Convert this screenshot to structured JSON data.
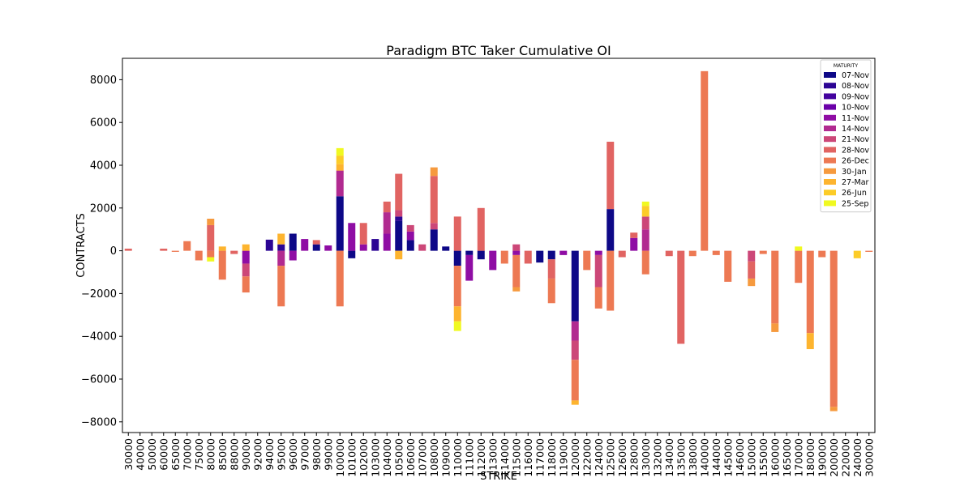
{
  "chart_data": {
    "type": "bar",
    "stacked": true,
    "title": "Paradigm BTC Taker Cumulative OI",
    "xlabel": "STRIKE",
    "ylabel": "CONTRACTS",
    "ylim": [
      -8500,
      9000
    ],
    "yticks": [
      -8000,
      -6000,
      -4000,
      -2000,
      0,
      2000,
      4000,
      6000,
      8000
    ],
    "grid": false,
    "legend": {
      "title": "MATURITY",
      "placement": "top-right"
    },
    "categories": [
      "30000",
      "40000",
      "50000",
      "60000",
      "65000",
      "70000",
      "75000",
      "80000",
      "85000",
      "88000",
      "90000",
      "92000",
      "94000",
      "95000",
      "96000",
      "97000",
      "98000",
      "99000",
      "100000",
      "101000",
      "102000",
      "103000",
      "104000",
      "105000",
      "106000",
      "107000",
      "108000",
      "109000",
      "110000",
      "111000",
      "112000",
      "113000",
      "114000",
      "115000",
      "116000",
      "117000",
      "118000",
      "119000",
      "120000",
      "122000",
      "124000",
      "125000",
      "126000",
      "128000",
      "130000",
      "132000",
      "134000",
      "135000",
      "138000",
      "140000",
      "144000",
      "145000",
      "146000",
      "150000",
      "155000",
      "160000",
      "165000",
      "170000",
      "180000",
      "190000",
      "200000",
      "220000",
      "240000",
      "300000"
    ],
    "series": [
      {
        "name": "07-Nov",
        "color": "#0d0887",
        "values": [
          0,
          0,
          0,
          0,
          0,
          0,
          0,
          0,
          0,
          0,
          0,
          0,
          0,
          0,
          800,
          0,
          300,
          0,
          2550,
          -350,
          0,
          0,
          0,
          1400,
          500,
          0,
          1000,
          200,
          -700,
          -200,
          -400,
          0,
          0,
          0,
          0,
          -550,
          -400,
          0,
          -3300,
          0,
          0,
          1950,
          0,
          0,
          0,
          0,
          0,
          0,
          0,
          0,
          0,
          0,
          0,
          0,
          0,
          0,
          0,
          0,
          0,
          0,
          0,
          0,
          0,
          0
        ]
      },
      {
        "name": "08-Nov",
        "color": "#2c0594",
        "values": [
          0,
          0,
          0,
          0,
          0,
          0,
          0,
          0,
          0,
          0,
          0,
          0,
          520,
          300,
          0,
          0,
          0,
          0,
          0,
          0,
          0,
          550,
          0,
          200,
          0,
          0,
          0,
          0,
          0,
          0,
          0,
          0,
          0,
          0,
          0,
          0,
          0,
          0,
          0,
          0,
          0,
          0,
          0,
          0,
          0,
          0,
          0,
          0,
          0,
          0,
          0,
          0,
          0,
          0,
          0,
          0,
          0,
          0,
          0,
          0,
          0,
          0,
          0,
          0
        ]
      },
      {
        "name": "09-Nov",
        "color": "#43039e",
        "values": [
          0,
          0,
          0,
          0,
          0,
          0,
          0,
          0,
          0,
          0,
          0,
          0,
          0,
          0,
          0,
          0,
          0,
          0,
          0,
          0,
          0,
          0,
          0,
          0,
          0,
          0,
          0,
          0,
          0,
          0,
          0,
          0,
          0,
          0,
          0,
          0,
          0,
          0,
          0,
          0,
          0,
          0,
          0,
          0,
          0,
          0,
          0,
          0,
          0,
          0,
          0,
          0,
          0,
          0,
          0,
          0,
          0,
          0,
          0,
          0,
          0,
          0,
          0,
          0
        ]
      },
      {
        "name": "10-Nov",
        "color": "#6a00a8",
        "values": [
          0,
          0,
          0,
          0,
          0,
          0,
          0,
          0,
          0,
          0,
          0,
          0,
          0,
          0,
          0,
          0,
          0,
          0,
          0,
          0,
          0,
          0,
          0,
          0,
          0,
          0,
          0,
          0,
          0,
          0,
          0,
          0,
          0,
          0,
          0,
          0,
          0,
          0,
          0,
          0,
          0,
          0,
          0,
          0,
          0,
          0,
          0,
          0,
          0,
          0,
          0,
          0,
          0,
          0,
          0,
          0,
          0,
          0,
          0,
          0,
          0,
          0,
          0,
          0
        ]
      },
      {
        "name": "11-Nov",
        "color": "#8f0da4",
        "values": [
          0,
          0,
          0,
          0,
          0,
          0,
          0,
          0,
          0,
          0,
          -600,
          0,
          0,
          0,
          -450,
          550,
          0,
          250,
          0,
          1300,
          300,
          0,
          800,
          0,
          400,
          0,
          0,
          0,
          0,
          -1200,
          0,
          -900,
          0,
          -200,
          0,
          0,
          0,
          -200,
          0,
          0,
          -200,
          0,
          0,
          600,
          0,
          0,
          0,
          0,
          0,
          0,
          0,
          0,
          0,
          0,
          0,
          0,
          0,
          0,
          0,
          0,
          0,
          0,
          0,
          0
        ]
      },
      {
        "name": "14-Nov",
        "color": "#b12a90",
        "values": [
          0,
          0,
          0,
          0,
          0,
          0,
          0,
          0,
          0,
          0,
          0,
          0,
          0,
          -700,
          0,
          0,
          0,
          0,
          1200,
          0,
          0,
          0,
          1000,
          0,
          0,
          0,
          0,
          0,
          0,
          0,
          0,
          0,
          0,
          0,
          0,
          0,
          0,
          0,
          -900,
          0,
          0,
          0,
          0,
          0,
          1000,
          0,
          0,
          0,
          0,
          0,
          0,
          0,
          0,
          0,
          0,
          0,
          0,
          0,
          0,
          0,
          0,
          0,
          0,
          0
        ]
      },
      {
        "name": "21-Nov",
        "color": "#cc4778",
        "values": [
          0,
          0,
          0,
          0,
          0,
          0,
          0,
          0,
          0,
          0,
          -600,
          0,
          0,
          0,
          0,
          0,
          0,
          0,
          0,
          0,
          0,
          0,
          0,
          300,
          300,
          300,
          300,
          0,
          0,
          0,
          0,
          0,
          0,
          300,
          0,
          0,
          0,
          0,
          -900,
          0,
          -1500,
          0,
          0,
          0,
          600,
          0,
          0,
          0,
          0,
          0,
          0,
          0,
          0,
          -500,
          0,
          0,
          0,
          0,
          0,
          0,
          0,
          0,
          0,
          0
        ]
      },
      {
        "name": "28-Nov",
        "color": "#e16462",
        "values": [
          100,
          0,
          0,
          100,
          0,
          0,
          0,
          1200,
          0,
          -150,
          0,
          0,
          0,
          0,
          0,
          0,
          200,
          0,
          0,
          0,
          1000,
          0,
          500,
          1700,
          0,
          0,
          2200,
          0,
          1600,
          0,
          2000,
          0,
          0,
          0,
          -600,
          0,
          -900,
          0,
          0,
          0,
          0,
          3150,
          -300,
          250,
          0,
          0,
          -250,
          -4350,
          0,
          0,
          0,
          0,
          0,
          -800,
          0,
          0,
          0,
          0,
          0,
          0,
          0,
          0,
          0,
          0
        ]
      },
      {
        "name": "26-Dec",
        "color": "#ed7953",
        "values": [
          0,
          0,
          0,
          0,
          -50,
          450,
          -450,
          -300,
          -1350,
          0,
          -750,
          0,
          0,
          -1900,
          0,
          0,
          0,
          0,
          -2600,
          0,
          0,
          0,
          0,
          0,
          0,
          0,
          0,
          0,
          -1900,
          0,
          0,
          0,
          -600,
          -1500,
          0,
          0,
          -1150,
          0,
          -1900,
          -900,
          -1000,
          -2800,
          0,
          0,
          -1100,
          0,
          0,
          0,
          -250,
          8400,
          -200,
          -1450,
          0,
          0,
          -150,
          -3400,
          0,
          -1500,
          -3850,
          -300,
          -7300,
          0,
          0,
          -50
        ]
      },
      {
        "name": "30-Jan",
        "color": "#f69a3e",
        "values": [
          0,
          0,
          0,
          0,
          0,
          0,
          0,
          300,
          0,
          0,
          0,
          0,
          0,
          0,
          0,
          0,
          0,
          0,
          0,
          0,
          0,
          0,
          0,
          0,
          0,
          0,
          400,
          0,
          0,
          0,
          0,
          0,
          0,
          -200,
          0,
          0,
          0,
          0,
          0,
          0,
          0,
          0,
          0,
          0,
          0,
          0,
          0,
          0,
          0,
          0,
          0,
          0,
          0,
          -350,
          0,
          -400,
          0,
          0,
          0,
          0,
          -200,
          0,
          0,
          0
        ]
      },
      {
        "name": "27-Mar",
        "color": "#fdb42f",
        "values": [
          0,
          0,
          0,
          0,
          0,
          0,
          0,
          0,
          200,
          0,
          300,
          0,
          0,
          500,
          0,
          0,
          0,
          0,
          300,
          0,
          0,
          0,
          0,
          -400,
          0,
          0,
          0,
          0,
          -700,
          0,
          0,
          0,
          0,
          0,
          0,
          0,
          0,
          0,
          -200,
          0,
          0,
          0,
          0,
          0,
          0,
          0,
          0,
          0,
          0,
          0,
          0,
          0,
          0,
          0,
          0,
          0,
          0,
          0,
          -750,
          0,
          0,
          0,
          0,
          0
        ]
      },
      {
        "name": "26-Jun",
        "color": "#fccc28",
        "values": [
          0,
          0,
          0,
          0,
          0,
          0,
          0,
          0,
          0,
          0,
          0,
          0,
          0,
          0,
          0,
          0,
          0,
          0,
          400,
          0,
          0,
          0,
          0,
          0,
          0,
          0,
          0,
          0,
          0,
          0,
          0,
          0,
          0,
          0,
          0,
          0,
          0,
          0,
          0,
          0,
          0,
          0,
          0,
          0,
          500,
          0,
          0,
          0,
          0,
          0,
          0,
          0,
          0,
          0,
          0,
          0,
          0,
          0,
          0,
          0,
          0,
          0,
          -350,
          0
        ]
      },
      {
        "name": "25-Sep",
        "color": "#f0f921",
        "values": [
          0,
          0,
          0,
          0,
          0,
          0,
          0,
          -200,
          0,
          0,
          0,
          0,
          0,
          0,
          0,
          0,
          0,
          0,
          350,
          0,
          0,
          0,
          0,
          0,
          0,
          0,
          0,
          0,
          -450,
          0,
          0,
          0,
          0,
          0,
          0,
          0,
          0,
          0,
          0,
          0,
          0,
          0,
          0,
          0,
          200,
          0,
          0,
          0,
          0,
          0,
          0,
          0,
          0,
          0,
          0,
          0,
          0,
          200,
          0,
          0,
          0,
          0,
          0,
          0
        ]
      }
    ]
  }
}
